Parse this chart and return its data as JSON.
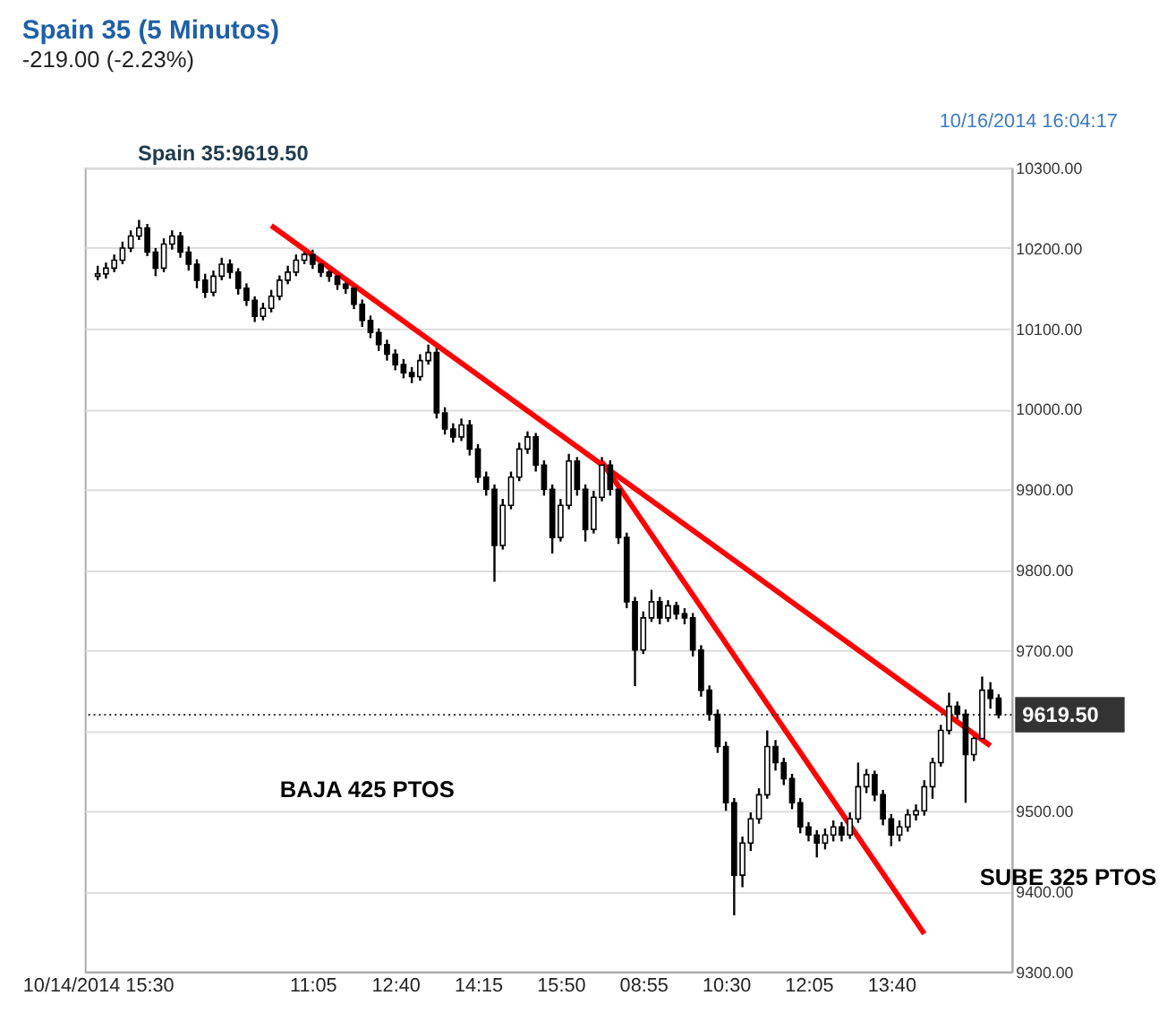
{
  "chart_data": {
    "type": "candlestick",
    "title": "Spain 35 (5 Minutos)",
    "subtitle": "-219.00 (-2.23%)",
    "annotations": [
      "10/16/2014 16:04:17",
      "Spain 35:9619.50",
      "BAJA 425  PTOS",
      "SUBE 325 PTOS"
    ],
    "categories": [
      "10/14/2014 15:30",
      null,
      null,
      null,
      null,
      null,
      null,
      null,
      null,
      null,
      null,
      null,
      null,
      null,
      null,
      null,
      null,
      null,
      null,
      null,
      null,
      null,
      null,
      null,
      null,
      null,
      "11:05",
      null,
      null,
      null,
      null,
      null,
      null,
      null,
      null,
      null,
      "12:40",
      null,
      null,
      null,
      null,
      null,
      null,
      null,
      null,
      null,
      "14:15",
      null,
      null,
      null,
      null,
      null,
      null,
      null,
      null,
      null,
      "15:50",
      null,
      null,
      null,
      null,
      null,
      null,
      null,
      null,
      null,
      "08:55",
      null,
      null,
      null,
      null,
      null,
      null,
      null,
      null,
      null,
      "10:30",
      null,
      null,
      null,
      null,
      null,
      null,
      null,
      null,
      null,
      "12:05",
      null,
      null,
      null,
      null,
      null,
      null,
      null,
      null,
      null,
      "13:40",
      null,
      null,
      null,
      null,
      null,
      null,
      null,
      null,
      null,
      null,
      null,
      null,
      null
    ],
    "ohlc": [
      [
        10165,
        10178,
        10160,
        10168
      ],
      [
        10168,
        10182,
        10162,
        10175
      ],
      [
        10175,
        10192,
        10170,
        10185
      ],
      [
        10185,
        10208,
        10180,
        10200
      ],
      [
        10200,
        10222,
        10195,
        10215
      ],
      [
        10215,
        10235,
        10210,
        10225
      ],
      [
        10225,
        10230,
        10190,
        10195
      ],
      [
        10195,
        10200,
        10165,
        10175
      ],
      [
        10175,
        10212,
        10170,
        10205
      ],
      [
        10205,
        10222,
        10198,
        10215
      ],
      [
        10215,
        10220,
        10188,
        10195
      ],
      [
        10195,
        10202,
        10172,
        10180
      ],
      [
        10180,
        10186,
        10150,
        10160
      ],
      [
        10160,
        10168,
        10138,
        10145
      ],
      [
        10145,
        10172,
        10140,
        10165
      ],
      [
        10165,
        10188,
        10160,
        10180
      ],
      [
        10180,
        10186,
        10162,
        10170
      ],
      [
        10170,
        10175,
        10142,
        10150
      ],
      [
        10150,
        10156,
        10128,
        10135
      ],
      [
        10135,
        10140,
        10108,
        10115
      ],
      [
        10115,
        10132,
        10110,
        10125
      ],
      [
        10125,
        10148,
        10120,
        10140
      ],
      [
        10140,
        10166,
        10135,
        10160
      ],
      [
        10160,
        10178,
        10155,
        10170
      ],
      [
        10170,
        10192,
        10165,
        10185
      ],
      [
        10185,
        10200,
        10180,
        10192
      ],
      [
        10192,
        10198,
        10174,
        10180
      ],
      [
        10180,
        10186,
        10164,
        10170
      ],
      [
        10170,
        10176,
        10158,
        10165
      ],
      [
        10165,
        10170,
        10148,
        10155
      ],
      [
        10155,
        10162,
        10143,
        10150
      ],
      [
        10150,
        10155,
        10124,
        10130
      ],
      [
        10130,
        10136,
        10102,
        10110
      ],
      [
        10110,
        10116,
        10088,
        10095
      ],
      [
        10095,
        10100,
        10072,
        10080
      ],
      [
        10080,
        10086,
        10060,
        10068
      ],
      [
        10068,
        10074,
        10048,
        10055
      ],
      [
        10055,
        10062,
        10038,
        10045
      ],
      [
        10045,
        10052,
        10032,
        10040
      ],
      [
        10040,
        10068,
        10035,
        10060
      ],
      [
        10060,
        10080,
        10055,
        10070
      ],
      [
        10070,
        10076,
        9988,
        9995
      ],
      [
        9995,
        10002,
        9968,
        9975
      ],
      [
        9975,
        9982,
        9958,
        9965
      ],
      [
        9965,
        9988,
        9960,
        9980
      ],
      [
        9980,
        9986,
        9942,
        9950
      ],
      [
        9950,
        9956,
        9908,
        9915
      ],
      [
        9915,
        9922,
        9892,
        9900
      ],
      [
        9900,
        9906,
        9785,
        9830
      ],
      [
        9830,
        9888,
        9825,
        9880
      ],
      [
        9880,
        9922,
        9875,
        9915
      ],
      [
        9915,
        9958,
        9910,
        9950
      ],
      [
        9950,
        9972,
        9944,
        9965
      ],
      [
        9965,
        9970,
        9922,
        9930
      ],
      [
        9930,
        9936,
        9892,
        9900
      ],
      [
        9900,
        9906,
        9820,
        9840
      ],
      [
        9840,
        9888,
        9835,
        9880
      ],
      [
        9880,
        9944,
        9875,
        9935
      ],
      [
        9935,
        9940,
        9892,
        9900
      ],
      [
        9900,
        9906,
        9835,
        9850
      ],
      [
        9850,
        9898,
        9845,
        9890
      ],
      [
        9890,
        9940,
        9885,
        9930
      ],
      [
        9930,
        9936,
        9892,
        9900
      ],
      [
        9900,
        9906,
        9832,
        9840
      ],
      [
        9840,
        9846,
        9752,
        9760
      ],
      [
        9760,
        9766,
        9655,
        9700
      ],
      [
        9700,
        9748,
        9695,
        9740
      ],
      [
        9740,
        9775,
        9735,
        9760
      ],
      [
        9760,
        9766,
        9732,
        9740
      ],
      [
        9740,
        9762,
        9735,
        9755
      ],
      [
        9755,
        9760,
        9738,
        9745
      ],
      [
        9745,
        9752,
        9732,
        9740
      ],
      [
        9740,
        9746,
        9692,
        9700
      ],
      [
        9700,
        9706,
        9642,
        9650
      ],
      [
        9650,
        9656,
        9612,
        9620
      ],
      [
        9620,
        9626,
        9572,
        9580
      ],
      [
        9580,
        9586,
        9500,
        9510
      ],
      [
        9510,
        9516,
        9370,
        9420
      ],
      [
        9420,
        9468,
        9405,
        9460
      ],
      [
        9460,
        9498,
        9450,
        9490
      ],
      [
        9490,
        9528,
        9484,
        9520
      ],
      [
        9520,
        9600,
        9515,
        9580
      ],
      [
        9580,
        9588,
        9550,
        9560
      ],
      [
        9560,
        9566,
        9532,
        9540
      ],
      [
        9540,
        9546,
        9502,
        9510
      ],
      [
        9510,
        9516,
        9472,
        9480
      ],
      [
        9480,
        9486,
        9462,
        9470
      ],
      [
        9470,
        9476,
        9442,
        9460
      ],
      [
        9460,
        9478,
        9452,
        9470
      ],
      [
        9470,
        9488,
        9462,
        9480
      ],
      [
        9480,
        9486,
        9462,
        9470
      ],
      [
        9470,
        9498,
        9465,
        9490
      ],
      [
        9490,
        9560,
        9485,
        9530
      ],
      [
        9530,
        9552,
        9522,
        9545
      ],
      [
        9545,
        9550,
        9512,
        9520
      ],
      [
        9520,
        9526,
        9482,
        9490
      ],
      [
        9490,
        9496,
        9456,
        9470
      ],
      [
        9470,
        9488,
        9462,
        9480
      ],
      [
        9480,
        9502,
        9474,
        9495
      ],
      [
        9495,
        9508,
        9488,
        9500
      ],
      [
        9500,
        9538,
        9494,
        9530
      ],
      [
        9530,
        9566,
        9515,
        9560
      ],
      [
        9560,
        9607,
        9555,
        9600
      ],
      [
        9600,
        9647,
        9595,
        9630
      ],
      [
        9630,
        9636,
        9612,
        9620
      ],
      [
        9620,
        9626,
        9510,
        9570
      ],
      [
        9570,
        9598,
        9562,
        9590
      ],
      [
        9590,
        9667,
        9585,
        9650
      ],
      [
        9650,
        9660,
        9627,
        9640
      ],
      [
        9640,
        9645,
        9615,
        9619.5
      ]
    ],
    "series": [
      {
        "type": "line",
        "color": "#ff0000",
        "values": [
          null,
          null,
          null,
          null,
          null,
          null,
          null,
          null,
          null,
          null,
          null,
          null,
          null,
          null,
          null,
          null,
          null,
          null,
          null,
          null,
          null,
          10228,
          null,
          null,
          null,
          null,
          null,
          null,
          null,
          null,
          null,
          null,
          null,
          null,
          null,
          null,
          null,
          null,
          null,
          null,
          null,
          null,
          null,
          null,
          null,
          null,
          null,
          null,
          null,
          null,
          null,
          null,
          null,
          null,
          null,
          null,
          null,
          null,
          null,
          null,
          null,
          null,
          null,
          null,
          null,
          null,
          null,
          null,
          null,
          null,
          null,
          null,
          null,
          null,
          null,
          null,
          null,
          null,
          null,
          null,
          null,
          null,
          null,
          null,
          null,
          null,
          null,
          null,
          null,
          null,
          null,
          null,
          null,
          null,
          null,
          null,
          null,
          null,
          null,
          null,
          null,
          null,
          null,
          null,
          null,
          null,
          null,
          null,
          9581,
          null
        ]
      },
      {
        "type": "line",
        "color": "#ff0000",
        "values": [
          null,
          null,
          null,
          null,
          null,
          null,
          null,
          null,
          null,
          null,
          null,
          null,
          null,
          null,
          null,
          null,
          null,
          null,
          null,
          null,
          null,
          null,
          null,
          null,
          null,
          null,
          null,
          null,
          null,
          null,
          null,
          null,
          null,
          null,
          null,
          null,
          null,
          null,
          null,
          null,
          null,
          null,
          null,
          null,
          null,
          null,
          null,
          null,
          null,
          null,
          null,
          null,
          null,
          null,
          null,
          null,
          null,
          null,
          null,
          null,
          null,
          9934,
          null,
          null,
          null,
          null,
          null,
          null,
          null,
          null,
          null,
          null,
          null,
          null,
          null,
          null,
          null,
          null,
          null,
          null,
          null,
          null,
          null,
          null,
          null,
          null,
          null,
          null,
          null,
          null,
          null,
          null,
          null,
          null,
          null,
          null,
          null,
          null,
          null,
          null,
          9347,
          null,
          null,
          null,
          null,
          null,
          null,
          null,
          null,
          null
        ]
      }
    ],
    "ylim": [
      9300,
      10300
    ],
    "yticks": [
      {
        "value": 9300,
        "label": "9300.00"
      },
      {
        "value": 9400,
        "label": "9400.00"
      },
      {
        "value": 9500,
        "label": "9500.00"
      },
      {
        "value": 9600,
        "label": null
      },
      {
        "value": 9700,
        "label": "9700.00"
      },
      {
        "value": 9800,
        "label": "9800.00"
      },
      {
        "value": 9900,
        "label": "9900.00"
      },
      {
        "value": 10000,
        "label": "10000.00"
      },
      {
        "value": 10100,
        "label": "10100.00"
      },
      {
        "value": 10200,
        "label": "10200.00"
      },
      {
        "value": 10300,
        "label": "10300.00"
      }
    ],
    "grid": "y",
    "ref_lines": [
      {
        "axis": "y",
        "value": 9619.5,
        "label": "9619.50",
        "line_style": "dotted",
        "color": "#333333"
      }
    ]
  }
}
